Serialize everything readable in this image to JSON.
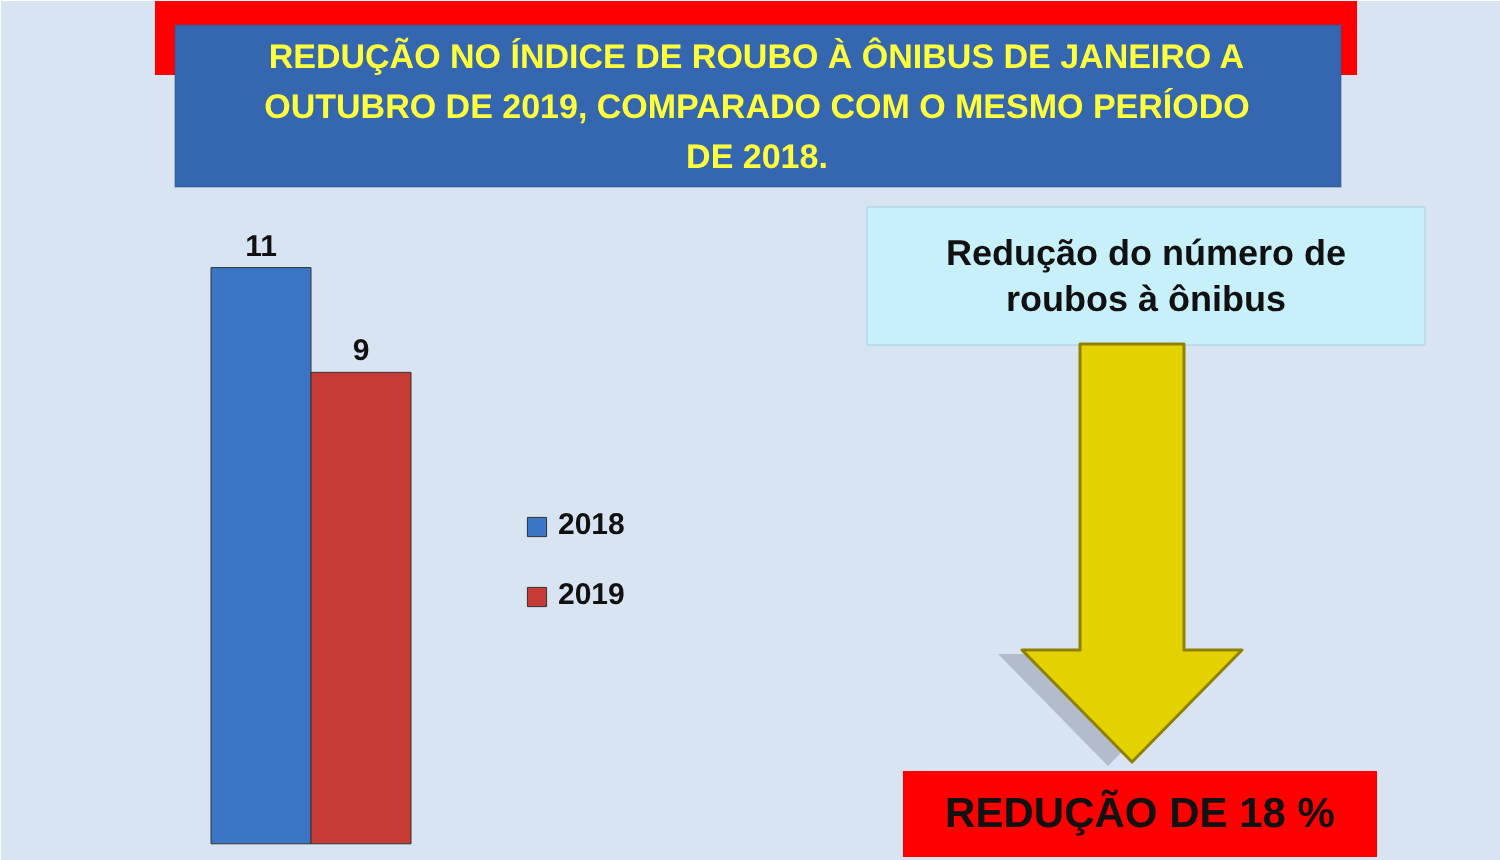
{
  "chart_data": {
    "type": "bar",
    "title": "REDUÇÃO NO ÍNDICE DE ROUBO À ÔNIBUS DE JANEIRO A OUTUBRO DE 2019, COMPARADO COM O MESMO PERÍODO DE 2018.",
    "categories": [
      null
    ],
    "series": [
      {
        "name": "2018",
        "color": "#3a76c4",
        "values": [
          11
        ]
      },
      {
        "name": "2019",
        "color": "#c63b35",
        "values": [
          9
        ]
      }
    ],
    "data_labels": true,
    "legend": "right",
    "annotations": [
      "Redução do número de roubos à ônibus",
      "REDUÇÃO DE 18 %"
    ]
  }
}
